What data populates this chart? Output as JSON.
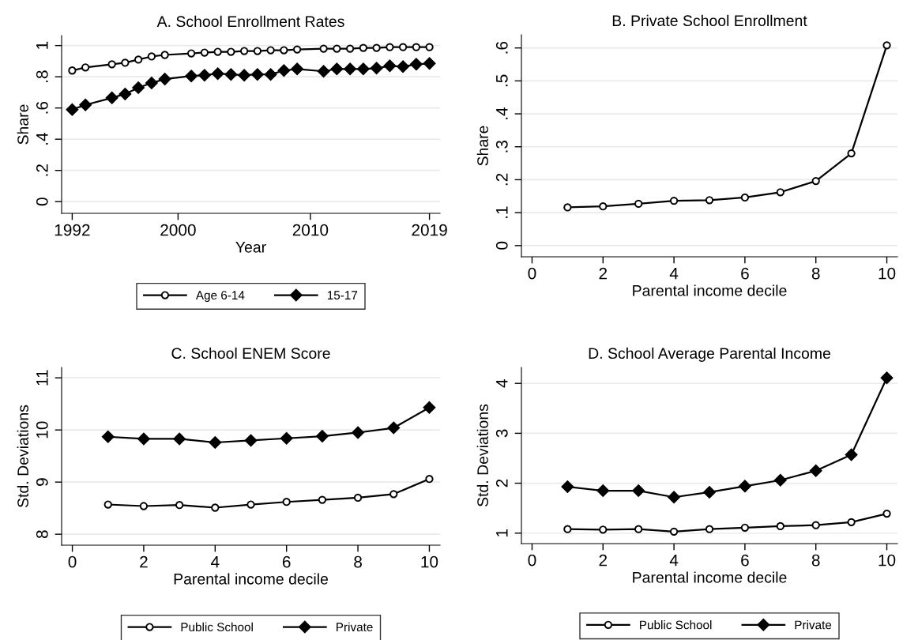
{
  "chart_data": [
    {
      "type": "line",
      "title": "A. School Enrollment Rates",
      "xlabel": "Year",
      "ylabel": "Share",
      "x": [
        1992,
        1993,
        1995,
        1996,
        1997,
        1998,
        1999,
        2001,
        2002,
        2003,
        2004,
        2005,
        2006,
        2007,
        2008,
        2009,
        2011,
        2012,
        2013,
        2014,
        2015,
        2016,
        2017,
        2018,
        2019
      ],
      "series": [
        {
          "name": "Age 6-14",
          "color": "#000000",
          "marker": "circle",
          "values": [
            0.84,
            0.86,
            0.88,
            0.89,
            0.91,
            0.93,
            0.94,
            0.95,
            0.955,
            0.96,
            0.96,
            0.965,
            0.965,
            0.97,
            0.97,
            0.975,
            0.98,
            0.98,
            0.98,
            0.985,
            0.985,
            0.99,
            0.99,
            0.99,
            0.99
          ]
        },
        {
          "name": "15-17",
          "color": "#000000",
          "marker": "diamond",
          "values": [
            0.59,
            0.62,
            0.665,
            0.69,
            0.73,
            0.76,
            0.785,
            0.805,
            0.81,
            0.82,
            0.815,
            0.81,
            0.815,
            0.815,
            0.84,
            0.85,
            0.835,
            0.85,
            0.85,
            0.85,
            0.855,
            0.87,
            0.865,
            0.88,
            0.885
          ]
        }
      ],
      "xlim": [
        1991.2,
        2019.8
      ],
      "xticks": [
        1992,
        2000,
        2010,
        2019
      ],
      "ylim": [
        -0.075,
        1.064
      ],
      "yticks": [
        0,
        {
          "value": 0.2,
          "label": ".2"
        },
        {
          "value": 0.4,
          "label": ".4"
        },
        {
          "value": 0.6,
          "label": ".6"
        },
        {
          "value": 0.8,
          "label": ".8"
        },
        1
      ],
      "grid": "y",
      "legend": "bottom"
    },
    {
      "type": "line",
      "title": "B. Private School Enrollment",
      "xlabel": "Parental income decile",
      "ylabel": "Share",
      "x": [
        1,
        2,
        3,
        4,
        5,
        6,
        7,
        8,
        9,
        10
      ],
      "series": [
        {
          "color": "#000000",
          "marker": "circle",
          "values": [
            0.116,
            0.119,
            0.127,
            0.136,
            0.138,
            0.146,
            0.162,
            0.196,
            0.28,
            0.608
          ]
        }
      ],
      "xlim": [
        -0.3,
        10.3
      ],
      "xticks": [
        0,
        2,
        4,
        6,
        8,
        10
      ],
      "ylim": [
        -0.034,
        0.64
      ],
      "yticks": [
        0,
        {
          "value": 0.1,
          "label": ".1"
        },
        {
          "value": 0.2,
          "label": ".2"
        },
        {
          "value": 0.3,
          "label": ".3"
        },
        {
          "value": 0.4,
          "label": ".4"
        },
        {
          "value": 0.5,
          "label": ".5"
        },
        {
          "value": 0.6,
          "label": ".6"
        }
      ],
      "grid": "y"
    },
    {
      "type": "line",
      "title": "C. School ENEM Score",
      "xlabel": "Parental income decile",
      "ylabel": "Std. Deviations",
      "x": [
        1,
        2,
        3,
        4,
        5,
        6,
        7,
        8,
        9,
        10
      ],
      "series": [
        {
          "name": "Public School",
          "color": "#000000",
          "marker": "circle",
          "values": [
            8.57,
            8.54,
            8.56,
            8.51,
            8.57,
            8.62,
            8.66,
            8.7,
            8.77,
            9.06
          ]
        },
        {
          "name": "Private",
          "color": "#000000",
          "marker": "diamond",
          "values": [
            9.87,
            9.83,
            9.83,
            9.76,
            9.8,
            9.84,
            9.88,
            9.95,
            10.04,
            10.43
          ]
        }
      ],
      "xlim": [
        -0.3,
        10.3
      ],
      "xticks": [
        0,
        2,
        4,
        6,
        8,
        10
      ],
      "ylim": [
        7.79,
        11.2
      ],
      "yticks": [
        8,
        9,
        10,
        11
      ],
      "grid": "y",
      "legend": "bottom"
    },
    {
      "type": "line",
      "title": "D. School Average Parental Income",
      "xlabel": "Parental income decile",
      "ylabel": "Std. Deviations",
      "x": [
        1,
        2,
        3,
        4,
        5,
        6,
        7,
        8,
        9,
        10
      ],
      "series": [
        {
          "name": "Public School",
          "color": "#000000",
          "marker": "circle",
          "values": [
            1.08,
            1.07,
            1.08,
            1.03,
            1.08,
            1.11,
            1.14,
            1.16,
            1.22,
            1.39
          ]
        },
        {
          "name": "Private",
          "color": "#000000",
          "marker": "diamond",
          "values": [
            1.93,
            1.85,
            1.85,
            1.72,
            1.82,
            1.94,
            2.06,
            2.25,
            2.57,
            4.11
          ]
        }
      ],
      "xlim": [
        -0.3,
        10.3
      ],
      "xticks": [
        0,
        2,
        4,
        6,
        8,
        10
      ],
      "ylim": [
        0.79,
        4.32
      ],
      "yticks": [
        1,
        2,
        3,
        4
      ],
      "grid": "y",
      "legend": "bottom"
    }
  ]
}
